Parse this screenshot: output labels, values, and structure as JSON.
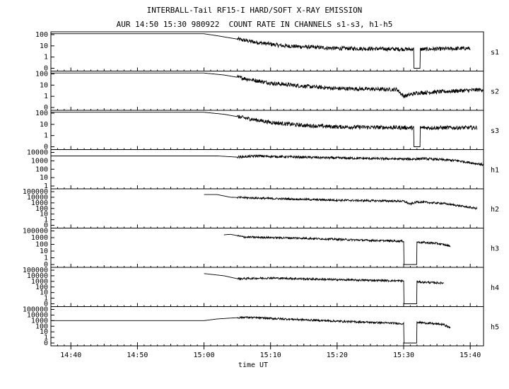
{
  "title_line1": "INTERBALL-Tail RF15-I HARD/SOFT X-RAY EMISSION",
  "title_line2": "AUR 14:50 15:30 980922  COUNT RATE IN CHANNELS s1-s3, h1-h5",
  "chart_data": {
    "type": "line",
    "xlabel": "time UT",
    "x_range": [
      "14:37",
      "15:42"
    ],
    "x_ticks": [
      "14:40",
      "14:50",
      "15:00",
      "15:10",
      "15:20",
      "15:30",
      "15:40"
    ],
    "y_scale": "log",
    "panels": [
      {
        "name": "s1",
        "y_ticks": [
          "100",
          "10",
          "1",
          "0"
        ],
        "gaps": [
          [
            "15:31.5",
            "15:32.5"
          ],
          [
            "15:40.8",
            "15:41.2"
          ]
        ],
        "points": [
          [
            "14:37",
            120
          ],
          [
            "15:00",
            120
          ],
          [
            "15:02",
            80
          ],
          [
            "15:05",
            40
          ],
          [
            "15:08",
            20
          ],
          [
            "15:12",
            10
          ],
          [
            "15:20",
            6
          ],
          [
            "15:31",
            5
          ],
          [
            "15:33",
            5
          ],
          [
            "15:40",
            6
          ]
        ]
      },
      {
        "name": "s2",
        "y_ticks": [
          "100",
          "10",
          "1",
          "0"
        ],
        "gaps": [],
        "points": [
          [
            "14:37",
            120
          ],
          [
            "15:00",
            120
          ],
          [
            "15:03",
            80
          ],
          [
            "15:06",
            40
          ],
          [
            "15:10",
            15
          ],
          [
            "15:15",
            8
          ],
          [
            "15:20",
            5
          ],
          [
            "15:29",
            4
          ],
          [
            "15:30",
            1
          ],
          [
            "15:32",
            2
          ],
          [
            "15:42",
            4
          ]
        ]
      },
      {
        "name": "s3",
        "y_ticks": [
          "100",
          "10",
          "1",
          "0"
        ],
        "gaps": [
          [
            "15:31.5",
            "15:32.5"
          ],
          [
            "15:41",
            "15:42"
          ]
        ],
        "points": [
          [
            "14:37",
            120
          ],
          [
            "15:00",
            120
          ],
          [
            "15:03",
            80
          ],
          [
            "15:07",
            30
          ],
          [
            "15:10",
            15
          ],
          [
            "15:15",
            8
          ],
          [
            "15:20",
            6
          ],
          [
            "15:31",
            5
          ],
          [
            "15:33",
            5
          ],
          [
            "15:41",
            5
          ]
        ]
      },
      {
        "name": "h1",
        "y_ticks": [
          "10000",
          "1000",
          "100",
          "10",
          "1"
        ],
        "gaps": [],
        "points": [
          [
            "14:37",
            3000
          ],
          [
            "15:02",
            3000
          ],
          [
            "15:05",
            2000
          ],
          [
            "15:08",
            3000
          ],
          [
            "15:10",
            2500
          ],
          [
            "15:20",
            1500
          ],
          [
            "15:31",
            1000
          ],
          [
            "15:33",
            1200
          ],
          [
            "15:38",
            600
          ],
          [
            "15:42",
            150
          ]
        ]
      },
      {
        "name": "h2",
        "y_ticks": [
          "100000",
          "10000",
          "1000",
          "100",
          "10",
          "1",
          "0"
        ],
        "gaps": [
          [
            "14:37",
            "15:00"
          ],
          [
            "15:41.5",
            "15:42"
          ]
        ],
        "points": [
          [
            "15:00",
            30000
          ],
          [
            "15:02",
            30000
          ],
          [
            "15:04",
            10000
          ],
          [
            "15:10",
            6000
          ],
          [
            "15:20",
            3000
          ],
          [
            "15:30",
            2000
          ],
          [
            "15:31",
            600
          ],
          [
            "15:32",
            1500
          ],
          [
            "15:36",
            800
          ],
          [
            "15:41",
            100
          ]
        ]
      },
      {
        "name": "h3",
        "y_ticks": [
          "100000",
          "1000",
          "100",
          "10",
          "1",
          "0"
        ],
        "gaps": [
          [
            "14:37",
            "15:03"
          ],
          [
            "15:30",
            "15:32"
          ],
          [
            "15:37",
            "15:42"
          ]
        ],
        "points": [
          [
            "15:03",
            20000
          ],
          [
            "15:04",
            25000
          ],
          [
            "15:06",
            8000
          ],
          [
            "15:15",
            5000
          ],
          [
            "15:25",
            2000
          ],
          [
            "15:30",
            1500
          ],
          [
            "15:32",
            1000
          ],
          [
            "15:35",
            600
          ],
          [
            "15:37",
            200
          ]
        ]
      },
      {
        "name": "h4",
        "y_ticks": [
          "100000",
          "10000",
          "1000",
          "100",
          "10",
          "1",
          "0"
        ],
        "gaps": [
          [
            "14:37",
            "15:00"
          ],
          [
            "15:30",
            "15:32"
          ],
          [
            "15:36.5",
            "15:42"
          ]
        ],
        "points": [
          [
            "15:00",
            25000
          ],
          [
            "15:03",
            10000
          ],
          [
            "15:05",
            3000
          ],
          [
            "15:10",
            4000
          ],
          [
            "15:20",
            2000
          ],
          [
            "15:30",
            1200
          ],
          [
            "15:32",
            800
          ],
          [
            "15:36",
            500
          ]
        ]
      },
      {
        "name": "h5",
        "y_ticks": [
          "100000",
          "10000",
          "1000",
          "100",
          "10",
          "1",
          "0"
        ],
        "gaps": [
          [
            "15:30",
            "15:32"
          ],
          [
            "15:37",
            "15:42"
          ]
        ],
        "points": [
          [
            "14:37",
            1000
          ],
          [
            "15:00",
            1000
          ],
          [
            "15:02",
            2000
          ],
          [
            "15:06",
            4000
          ],
          [
            "15:10",
            2500
          ],
          [
            "15:20",
            800
          ],
          [
            "15:30",
            300
          ],
          [
            "15:32",
            500
          ],
          [
            "15:36",
            200
          ],
          [
            "15:37",
            50
          ]
        ]
      }
    ]
  }
}
